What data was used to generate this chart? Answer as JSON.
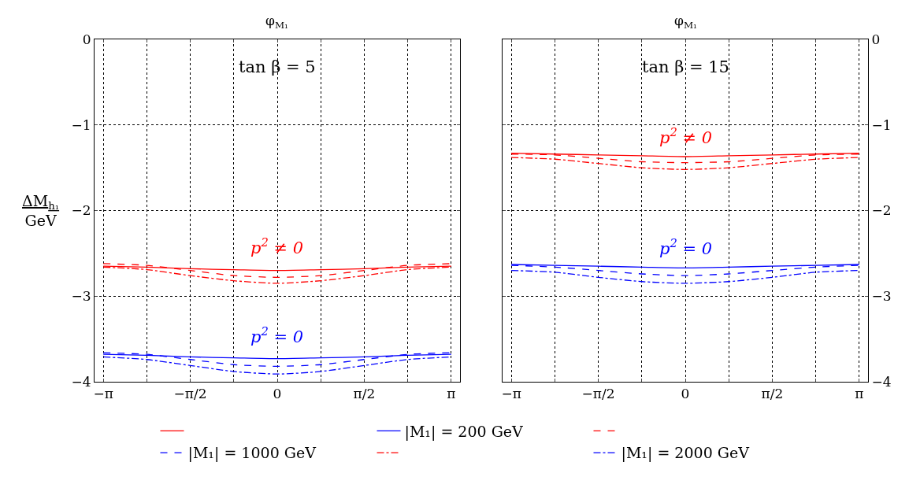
{
  "chart_data": [
    {
      "type": "line",
      "title": "φ$_{M₁}$",
      "ylabel": "ΔM$_{h₁}$\nGeV",
      "x": [
        -3.1416,
        -2.3562,
        -1.5708,
        -0.7854,
        0,
        0.7854,
        1.5708,
        2.3562,
        3.1416
      ],
      "xlim": [
        -3.3,
        3.3
      ],
      "xticks": [
        {
          "value": -3.1416,
          "label": "−π"
        },
        {
          "value": -2.3562,
          "label": null
        },
        {
          "value": -1.5708,
          "label": "−π/2"
        },
        {
          "value": -0.7854,
          "label": null
        },
        {
          "value": 0,
          "label": "0"
        },
        {
          "value": 0.7854,
          "label": null
        },
        {
          "value": 1.5708,
          "label": "π/2"
        },
        {
          "value": 2.3562,
          "label": null
        },
        {
          "value": 3.1416,
          "label": "π"
        }
      ],
      "ylim": [
        -4,
        0
      ],
      "yticks": [
        0,
        -1,
        -2,
        -3,
        -4
      ],
      "grid": true,
      "legend": "bottom",
      "marker": "none",
      "annotations": [
        "tan β = 5",
        "p$^{2}$ ≠ 0",
        "p$^{2}$ = 0"
      ],
      "series": [
        {
          "color": "#ff0000",
          "line_style": "solid",
          "values": [
            -2.65,
            -2.66,
            -2.68,
            -2.69,
            -2.7,
            -2.69,
            -2.68,
            -2.66,
            -2.65
          ]
        },
        {
          "color": "#ff0000",
          "line_style": "dashed",
          "values": [
            -2.62,
            -2.64,
            -2.7,
            -2.76,
            -2.78,
            -2.76,
            -2.7,
            -2.64,
            -2.62
          ]
        },
        {
          "color": "#ff0000",
          "line_style": "dashdot",
          "values": [
            -2.66,
            -2.69,
            -2.76,
            -2.82,
            -2.85,
            -2.82,
            -2.76,
            -2.69,
            -2.66
          ]
        },
        {
          "name": "|M₁| = 200 GeV",
          "color": "#0000ff",
          "line_style": "solid",
          "values": [
            -3.68,
            -3.69,
            -3.71,
            -3.72,
            -3.73,
            -3.72,
            -3.71,
            -3.69,
            -3.68
          ]
        },
        {
          "name": "|M₁| = 1000 GeV",
          "color": "#0000ff",
          "line_style": "dashed",
          "values": [
            -3.66,
            -3.68,
            -3.74,
            -3.8,
            -3.82,
            -3.8,
            -3.74,
            -3.68,
            -3.66
          ]
        },
        {
          "name": "|M₁| = 2000 GeV",
          "color": "#0000ff",
          "line_style": "dashdot",
          "values": [
            -3.71,
            -3.74,
            -3.81,
            -3.88,
            -3.91,
            -3.88,
            -3.81,
            -3.74,
            -3.71
          ]
        }
      ]
    },
    {
      "type": "line",
      "title": "φ$_{M₁}$",
      "x": [
        -3.1416,
        -2.3562,
        -1.5708,
        -0.7854,
        0,
        0.7854,
        1.5708,
        2.3562,
        3.1416
      ],
      "xlim": [
        -3.3,
        3.3
      ],
      "xticks": [
        {
          "value": -3.1416,
          "label": "−π"
        },
        {
          "value": -2.3562,
          "label": null
        },
        {
          "value": -1.5708,
          "label": "−π/2"
        },
        {
          "value": -0.7854,
          "label": null
        },
        {
          "value": 0,
          "label": "0"
        },
        {
          "value": 0.7854,
          "label": null
        },
        {
          "value": 1.5708,
          "label": "π/2"
        },
        {
          "value": 2.3562,
          "label": null
        },
        {
          "value": 3.1416,
          "label": "π"
        }
      ],
      "ylim": [
        -4,
        0
      ],
      "yticks": [
        0,
        -1,
        -2,
        -3,
        -4
      ],
      "grid": true,
      "marker": "none",
      "annotations": [
        "tan β = 15",
        "p$^{2}$ ≠ 0",
        "p$^{2}$ = 0"
      ],
      "series": [
        {
          "color": "#ff0000",
          "line_style": "solid",
          "values": [
            -1.33,
            -1.34,
            -1.35,
            -1.36,
            -1.37,
            -1.36,
            -1.35,
            -1.34,
            -1.33
          ]
        },
        {
          "color": "#ff0000",
          "line_style": "dashed",
          "values": [
            -1.34,
            -1.35,
            -1.39,
            -1.43,
            -1.44,
            -1.43,
            -1.39,
            -1.35,
            -1.34
          ]
        },
        {
          "color": "#ff0000",
          "line_style": "dashdot",
          "values": [
            -1.38,
            -1.4,
            -1.45,
            -1.5,
            -1.52,
            -1.5,
            -1.45,
            -1.4,
            -1.38
          ]
        },
        {
          "color": "#0000ff",
          "line_style": "solid",
          "values": [
            -2.63,
            -2.64,
            -2.65,
            -2.66,
            -2.67,
            -2.66,
            -2.65,
            -2.64,
            -2.63
          ]
        },
        {
          "color": "#0000ff",
          "line_style": "dashed",
          "values": [
            -2.64,
            -2.66,
            -2.7,
            -2.74,
            -2.76,
            -2.74,
            -2.7,
            -2.66,
            -2.64
          ]
        },
        {
          "color": "#0000ff",
          "line_style": "dashdot",
          "values": [
            -2.7,
            -2.72,
            -2.78,
            -2.83,
            -2.85,
            -2.83,
            -2.78,
            -2.72,
            -2.7
          ]
        }
      ]
    }
  ]
}
